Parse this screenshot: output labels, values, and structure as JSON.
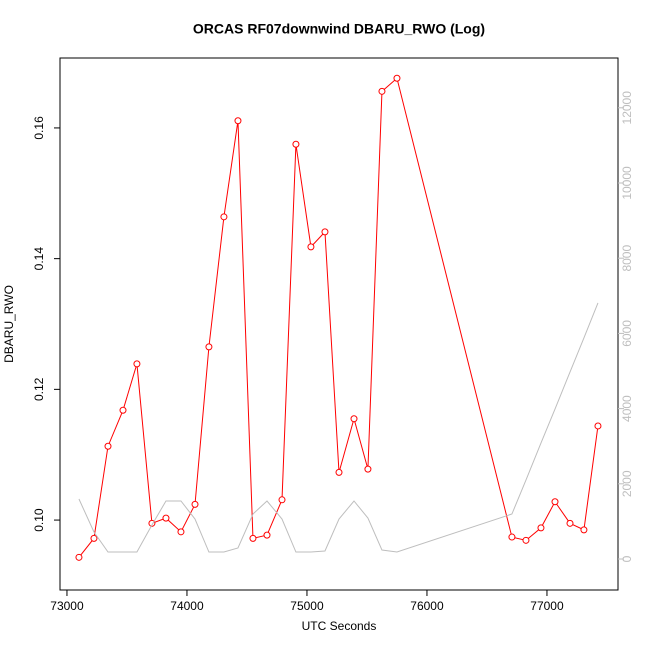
{
  "chart_data": {
    "type": "line",
    "title": "ORCAS RF07downwind DBARU_RWO (Log)",
    "x_label": "UTC Seconds",
    "y_label": "DBARU_RWO",
    "x": [
      73100,
      73225,
      73342,
      73467,
      73583,
      73708,
      73825,
      73950,
      74067,
      74183,
      74308,
      74425,
      74550,
      74667,
      74792,
      74908,
      75033,
      75150,
      75267,
      75392,
      75508,
      75625,
      75750,
      76708,
      76825,
      76950,
      77067,
      77192,
      77308,
      77425
    ],
    "series": [
      {
        "color": "#ff0000",
        "markers": true,
        "values": [
          0.0943,
          0.0972,
          0.1113,
          0.1168,
          0.1239,
          0.0995,
          0.1003,
          0.0982,
          0.1024,
          0.1265,
          0.1464,
          0.1611,
          0.0972,
          0.0977,
          0.1031,
          0.1575,
          0.1418,
          0.1441,
          0.1073,
          0.1155,
          0.1078,
          0.1656,
          0.1676,
          0.0974,
          0.0969,
          0.0988,
          0.1028,
          0.0995,
          0.0985,
          0.1144
        ]
      },
      {
        "color": "#bebebe",
        "markers": false,
        "axis": "y2",
        "values": [
          1596,
          718,
          186,
          186,
          186,
          904,
          1543,
          1543,
          1064,
          186,
          186,
          293,
          1197,
          1543,
          1064,
          186,
          186,
          213,
          1064,
          1543,
          1090,
          239,
          186,
          1197,
          2101,
          3085,
          3989,
          4973,
          5878,
          6809
        ]
      }
    ],
    "xlim": [
      72942,
      77592
    ],
    "xticks": [
      73000,
      74000,
      75000,
      76000,
      77000
    ],
    "ylim": [
      0.0893,
      0.1707
    ],
    "yticks": [
      {
        "value": 0.1,
        "label": "0.10"
      },
      0.12,
      0.14,
      0.16
    ],
    "y2lim": [
      -824,
      13324
    ],
    "y2ticks": [
      0,
      2000,
      4000,
      6000,
      8000,
      10000,
      12000
    ],
    "y2_tick_color": "#bebebe"
  }
}
